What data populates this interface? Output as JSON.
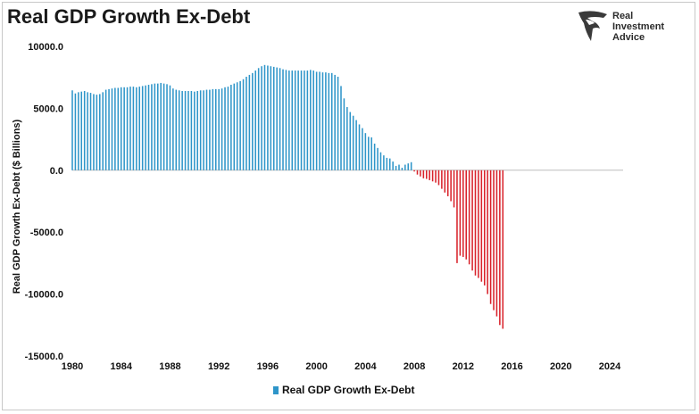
{
  "title": "Real GDP Growth Ex-Debt",
  "logo": {
    "line1": "Real",
    "line2": "Investment",
    "line3": "Advice"
  },
  "chart_data": {
    "type": "bar",
    "title": "Real GDP Growth Ex-Debt",
    "xlabel": "",
    "ylabel": "Real GDP Growth Ex-Debt ($ Billions)",
    "ylim": [
      -15000,
      10000
    ],
    "xlim": [
      1980,
      2025.5
    ],
    "yticks": [
      "10000.0",
      "5000.0",
      "0.0",
      "-5000.0",
      "-10000.0",
      "-15000.0"
    ],
    "ytick_values": [
      10000,
      5000,
      0,
      -5000,
      -10000,
      -15000
    ],
    "xticks": [
      "1980",
      "1984",
      "1988",
      "1992",
      "1996",
      "2000",
      "2004",
      "2008",
      "2012",
      "2016",
      "2020",
      "2024"
    ],
    "xtick_values": [
      1980,
      1984,
      1988,
      1992,
      1996,
      2000,
      2004,
      2008,
      2012,
      2016,
      2020,
      2024
    ],
    "legend_position": "bottom",
    "colors": {
      "positive": "#2e95c9",
      "negative": "#d9222a"
    },
    "frequency": "quarterly",
    "series": [
      {
        "name": "Real GDP Growth Ex-Debt",
        "x_start": 1980.0,
        "x_step": 0.25,
        "values": [
          6450,
          6200,
          6300,
          6350,
          6400,
          6300,
          6250,
          6150,
          6100,
          6150,
          6300,
          6500,
          6550,
          6600,
          6650,
          6650,
          6700,
          6700,
          6700,
          6750,
          6750,
          6700,
          6750,
          6800,
          6850,
          6900,
          6950,
          7000,
          7000,
          7050,
          7000,
          6950,
          6850,
          6600,
          6500,
          6450,
          6400,
          6400,
          6400,
          6400,
          6350,
          6400,
          6450,
          6450,
          6500,
          6500,
          6550,
          6550,
          6550,
          6600,
          6700,
          6750,
          6900,
          7000,
          7100,
          7200,
          7350,
          7550,
          7700,
          7850,
          8050,
          8250,
          8400,
          8500,
          8450,
          8400,
          8350,
          8300,
          8250,
          8150,
          8100,
          8050,
          8050,
          8050,
          8050,
          8050,
          8050,
          8050,
          8100,
          8050,
          7950,
          7950,
          7900,
          7900,
          7850,
          7850,
          7700,
          7550,
          6800,
          5800,
          5100,
          4700,
          4400,
          4050,
          3700,
          3400,
          3000,
          2700,
          2650,
          2150,
          1800,
          1450,
          1200,
          1000,
          950,
          700,
          350,
          450,
          200,
          450,
          550,
          650,
          -100,
          -350,
          -500,
          -650,
          -700,
          -800,
          -900,
          -1000,
          -1200,
          -1500,
          -1800,
          -2100,
          -2500,
          -3000,
          -7500,
          -6900,
          -7000,
          -7200,
          -7600,
          -8100,
          -8500,
          -8700,
          -9000,
          -9300,
          -10000,
          -10800,
          -11300,
          -11800,
          -12500,
          -12800
        ]
      }
    ]
  },
  "legend": {
    "label": "Real GDP Growth Ex-Debt"
  }
}
